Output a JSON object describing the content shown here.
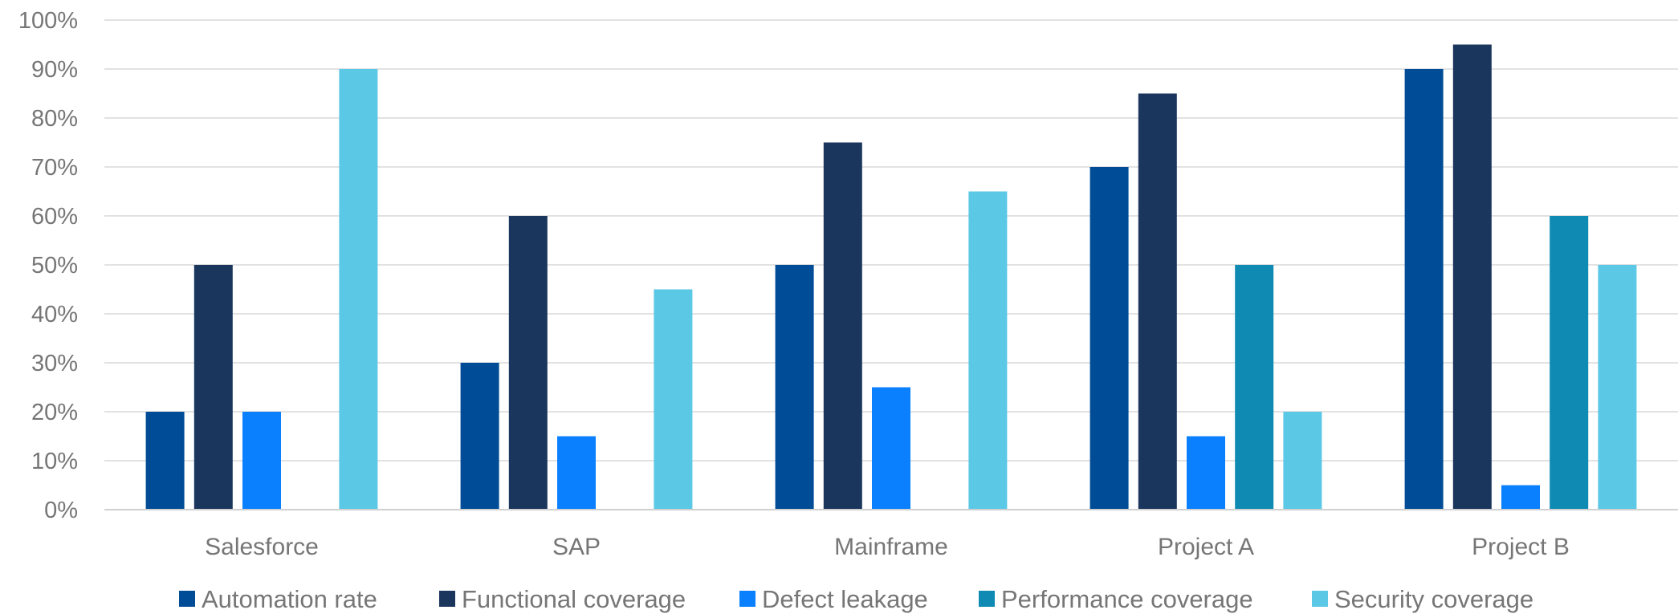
{
  "chart_data": {
    "type": "bar",
    "categories": [
      "Salesforce",
      "SAP",
      "Mainframe",
      "Project A",
      "Project B"
    ],
    "series": [
      {
        "name": "Automation rate",
        "color": "#004c97",
        "values": [
          20,
          30,
          50,
          70,
          90
        ]
      },
      {
        "name": "Functional coverage",
        "color": "#1b365d",
        "values": [
          50,
          60,
          75,
          85,
          95
        ]
      },
      {
        "name": "Defect leakage",
        "color": "#0a80ff",
        "values": [
          20,
          15,
          25,
          15,
          5
        ]
      },
      {
        "name": "Performance coverage",
        "color": "#0f8ab2",
        "values": [
          0,
          0,
          0,
          50,
          60
        ]
      },
      {
        "name": "Security coverage",
        "color": "#5bc8e6",
        "values": [
          90,
          45,
          65,
          20,
          50
        ]
      }
    ],
    "y_ticks": [
      "0%",
      "10%",
      "20%",
      "30%",
      "40%",
      "50%",
      "60%",
      "70%",
      "80%",
      "90%",
      "100%"
    ],
    "ylim": [
      0,
      100
    ],
    "grid": true,
    "legend_position": "bottom",
    "title": "",
    "xlabel": "",
    "ylabel": ""
  }
}
